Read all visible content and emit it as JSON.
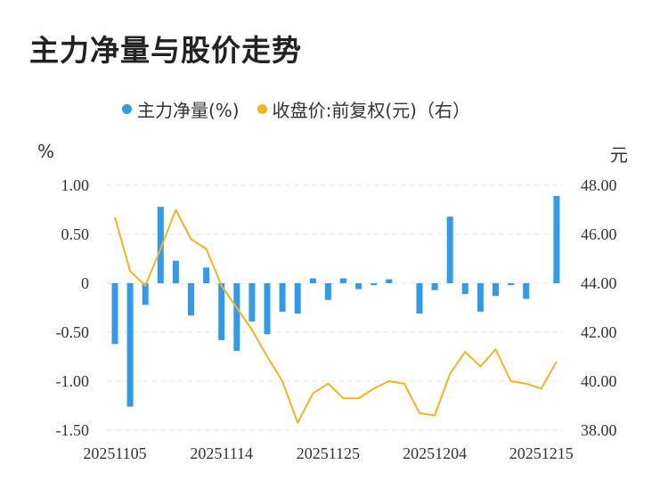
{
  "title": "主力净量与股价走势",
  "legend": {
    "bar_label": "主力净量(%)",
    "line_label": "收盘价:前复权(元)（右）"
  },
  "units": {
    "left": "%",
    "right": "元"
  },
  "colors": {
    "bar": "#2f9bea",
    "line": "#f2b51c",
    "grid": "#e6e6e6",
    "text": "#333333"
  },
  "chart_data": {
    "type": "bar",
    "dates": [
      "20251105",
      "20251106",
      "20251107",
      "20251110",
      "20251111",
      "20251112",
      "20251113",
      "20251114",
      "20251117",
      "20251118",
      "20251119",
      "20251120",
      "20251121",
      "20251124",
      "20251125",
      "20251126",
      "20251127",
      "20251128",
      "20251201",
      "20251202",
      "20251203",
      "20251204",
      "20251205",
      "20251208",
      "20251209",
      "20251210",
      "20251211",
      "20251212",
      "20251215",
      "20251216"
    ],
    "x_tick_labels": [
      "20251105",
      "20251114",
      "20251125",
      "20251204",
      "20251215"
    ],
    "x_tick_indices": [
      0,
      7,
      14,
      21,
      28
    ],
    "series": [
      {
        "name": "主力净量(%)",
        "type": "bar",
        "axis": "left",
        "values": [
          -0.62,
          -1.26,
          -0.22,
          0.78,
          0.23,
          -0.33,
          0.16,
          -0.58,
          -0.69,
          -0.39,
          -0.52,
          -0.29,
          -0.31,
          0.05,
          -0.17,
          0.05,
          -0.06,
          -0.02,
          0.04,
          0.0,
          -0.31,
          -0.07,
          0.68,
          -0.11,
          -0.29,
          -0.13,
          -0.02,
          -0.16,
          0.0,
          0.89
        ]
      },
      {
        "name": "收盘价:前复权(元)（右）",
        "type": "line",
        "axis": "right",
        "values": [
          46.7,
          44.5,
          43.9,
          45.4,
          47.0,
          45.8,
          45.4,
          43.9,
          43.0,
          42.1,
          41.0,
          40.0,
          38.3,
          39.5,
          39.9,
          39.3,
          39.3,
          39.7,
          40.0,
          39.9,
          38.7,
          38.6,
          40.3,
          41.2,
          40.6,
          41.3,
          40.0,
          39.9,
          39.7,
          40.8
        ]
      }
    ],
    "y_left": {
      "ticks": [
        1.0,
        0.5,
        0,
        -0.5,
        -1.0,
        -1.5
      ],
      "tick_labels": [
        "1.00",
        "0.50",
        "0",
        "-0.50",
        "-1.00",
        "-1.50"
      ],
      "range": [
        -1.5,
        1.0
      ]
    },
    "y_right": {
      "ticks": [
        48.0,
        46.0,
        44.0,
        42.0,
        40.0,
        38.0
      ],
      "tick_labels": [
        "48.00",
        "46.00",
        "44.00",
        "42.00",
        "40.00",
        "38.00"
      ],
      "range": [
        38.0,
        48.0
      ]
    },
    "grid": true,
    "legend_position": "top-center"
  }
}
